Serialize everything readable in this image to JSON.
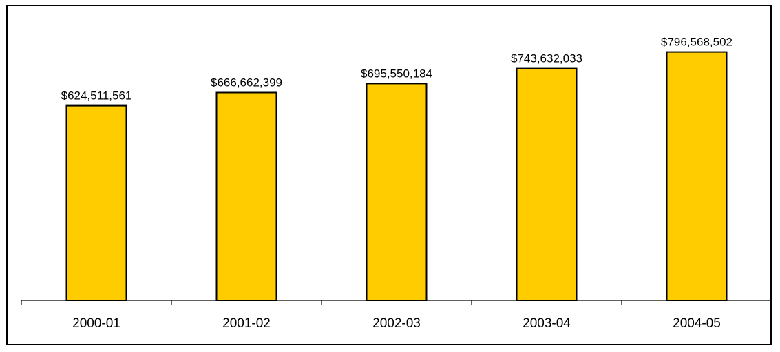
{
  "chart_data": {
    "type": "bar",
    "categories": [
      "2000-01",
      "2001-02",
      "2002-03",
      "2003-04",
      "2004-05"
    ],
    "values": [
      624511561,
      666662399,
      695550184,
      743632033,
      796568502
    ],
    "value_labels": [
      "$624,511,561",
      "$666,662,399",
      "$695,550,184",
      "$743,632,033",
      "$796,568,502"
    ],
    "title": "",
    "xlabel": "",
    "ylabel": "",
    "ylim": [
      0,
      800000000
    ],
    "grid": false,
    "legend": "none",
    "bar_color": "#FFCC00",
    "bar_edge_color": "#000000"
  }
}
